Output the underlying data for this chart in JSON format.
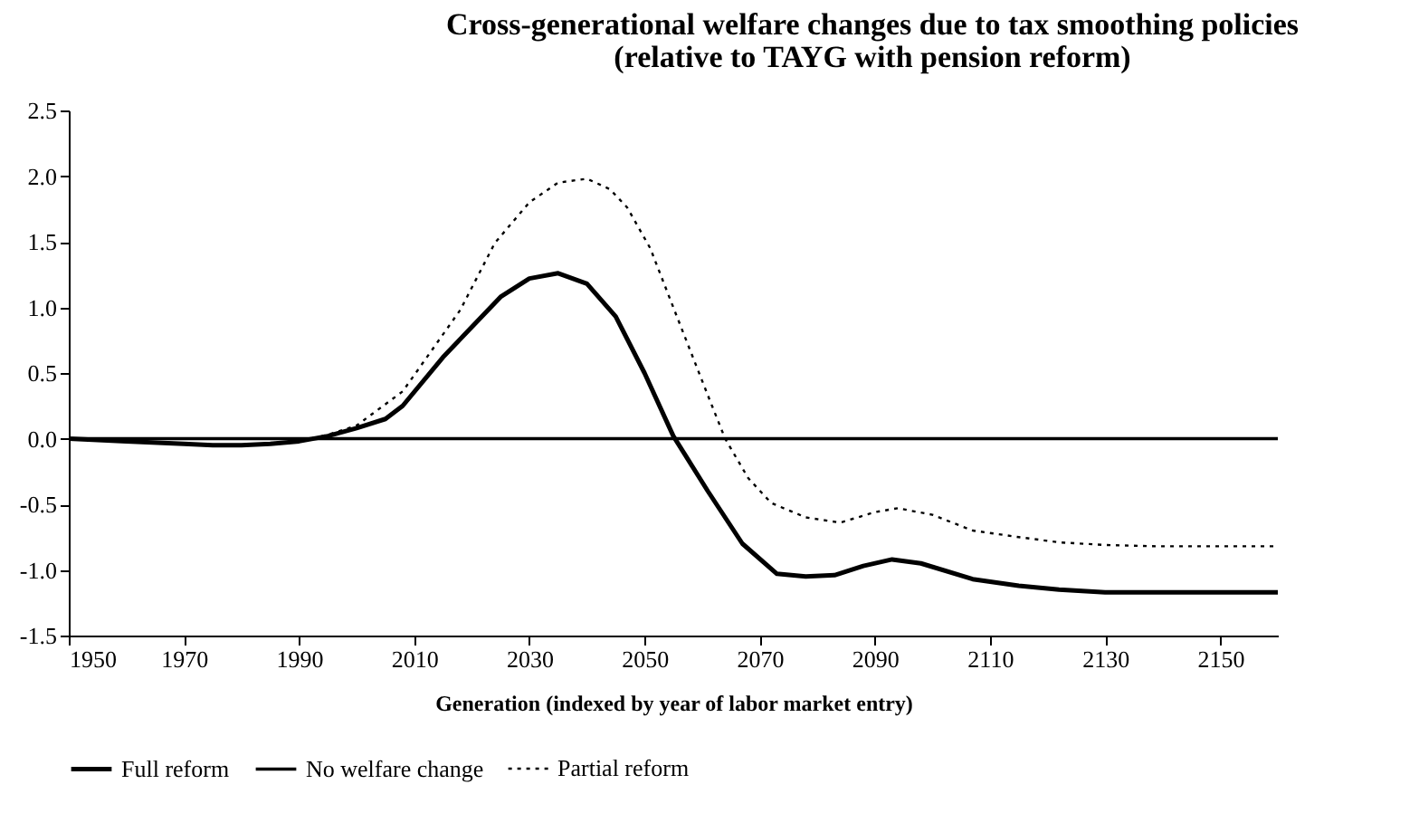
{
  "chart_data": {
    "type": "line",
    "title": "Cross-generational welfare changes due to tax smoothing policies",
    "subtitle": "(relative to TAYG with pension reform)",
    "xlabel": "Generation (indexed by year of labor market entry)",
    "xlim": [
      1950,
      2160
    ],
    "xticks": [
      1950,
      1970,
      1990,
      2010,
      2030,
      2050,
      2070,
      2090,
      2110,
      2130,
      2150
    ],
    "ylim": [
      -1.5,
      2.5
    ],
    "yticks": [
      {
        "value": -1.5,
        "label": "-1.5"
      },
      {
        "value": -1,
        "label": "-1.0"
      },
      {
        "value": -0.5,
        "label": "-0.5"
      },
      {
        "value": 0,
        "label": "0.0"
      },
      {
        "value": 0.5,
        "label": "0.5"
      },
      {
        "value": 1,
        "label": "1.0"
      },
      {
        "value": 1.5,
        "label": "1.5"
      },
      {
        "value": 2,
        "label": "2.0"
      },
      {
        "value": 2.5,
        "label": "2.5"
      }
    ],
    "grid": false,
    "legend": "bottom",
    "marker": "none",
    "series": [
      {
        "name": "Full reform",
        "color": "#000000",
        "line_style": "solid",
        "x": [
          1950,
          1960,
          1970,
          1975,
          1980,
          1985,
          1990,
          1995,
          2000,
          2005,
          2008,
          2015,
          2025,
          2030,
          2035,
          2040,
          2045,
          2050,
          2055,
          2061,
          2067,
          2073,
          2078,
          2083,
          2088,
          2093,
          2098,
          2107,
          2115,
          2122,
          2130,
          2145,
          2160
        ],
        "values": [
          0,
          -0.02,
          -0.04,
          -0.05,
          -0.05,
          -0.04,
          -0.02,
          0.02,
          0.08,
          0.15,
          0.25,
          0.62,
          1.08,
          1.22,
          1.26,
          1.18,
          0.93,
          0.5,
          0.02,
          -0.4,
          -0.8,
          -1.03,
          -1.05,
          -1.04,
          -0.97,
          -0.92,
          -0.95,
          -1.07,
          -1.12,
          -1.15,
          -1.17,
          -1.17,
          -1.17
        ]
      },
      {
        "name": "No welfare change",
        "color": "#000000",
        "line_style": "solid",
        "x": [
          1950,
          2160
        ],
        "values": [
          0,
          0
        ]
      },
      {
        "name": "Partial reform",
        "color": "#000000",
        "line_style": "dotted",
        "x": [
          1950,
          1960,
          1970,
          1975,
          1980,
          1985,
          1990,
          1995,
          2000,
          2008,
          2018,
          2024,
          2030,
          2035,
          2040,
          2044,
          2047,
          2051,
          2055,
          2061,
          2064,
          2068,
          2072,
          2078,
          2084,
          2090,
          2094,
          2100,
          2107,
          2115,
          2122,
          2130,
          2139,
          2160
        ],
        "values": [
          0,
          -0.02,
          -0.04,
          -0.05,
          -0.05,
          -0.04,
          -0.02,
          0.03,
          0.1,
          0.36,
          0.98,
          1.49,
          1.8,
          1.95,
          1.98,
          1.9,
          1.76,
          1.45,
          1.0,
          0.33,
          0,
          -0.3,
          -0.49,
          -0.6,
          -0.64,
          -0.56,
          -0.53,
          -0.58,
          -0.7,
          -0.75,
          -0.79,
          -0.81,
          -0.82,
          -0.82
        ]
      }
    ]
  }
}
